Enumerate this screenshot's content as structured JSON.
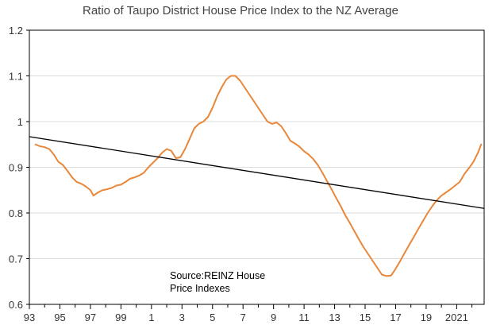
{
  "chart_data": {
    "type": "line",
    "title": "Ratio of Taupo District House Price Index to the NZ Average",
    "annotation": [
      "Source:REINZ House",
      "Price Indexes"
    ],
    "x_tick_labels": [
      "93",
      "95",
      "97",
      "99",
      "1",
      "3",
      "5",
      "7",
      "9",
      "11",
      "13",
      "15",
      "17",
      "19",
      "2021"
    ],
    "x_tick_years": [
      1993,
      1995,
      1997,
      1999,
      2001,
      2003,
      2005,
      2007,
      2009,
      2011,
      2013,
      2015,
      2017,
      2019,
      2021
    ],
    "xlim": [
      1993,
      2022.8
    ],
    "ylim": [
      0.6,
      1.2
    ],
    "y_ticks": [
      0.6,
      0.7,
      0.8,
      0.9,
      1.0,
      1.1,
      1.2
    ],
    "y_tick_labels": [
      "0.6",
      "0.7",
      "0.8",
      "0.9",
      "1",
      "1.1",
      "1.2"
    ],
    "grid": "horizontal",
    "series": [
      {
        "color": "#E8873A",
        "x": [
          1993.4,
          1993.7,
          1994.0,
          1994.3,
          1994.6,
          1994.9,
          1995.2,
          1995.5,
          1995.8,
          1996.1,
          1996.4,
          1996.7,
          1997.0,
          1997.2,
          1997.5,
          1997.8,
          1998.1,
          1998.4,
          1998.7,
          1999.0,
          1999.3,
          1999.6,
          1999.9,
          2000.2,
          2000.5,
          2000.8,
          2001.1,
          2001.4,
          2001.7,
          2002.0,
          2002.3,
          2002.6,
          2002.9,
          2003.2,
          2003.5,
          2003.8,
          2004.1,
          2004.4,
          2004.7,
          2005.0,
          2005.3,
          2005.6,
          2005.9,
          2006.2,
          2006.5,
          2006.8,
          2007.1,
          2007.4,
          2007.7,
          2008.0,
          2008.3,
          2008.6,
          2008.9,
          2009.2,
          2009.5,
          2009.8,
          2010.1,
          2010.4,
          2010.7,
          2011.0,
          2011.3,
          2011.6,
          2011.9,
          2012.2,
          2012.5,
          2012.8,
          2013.1,
          2013.4,
          2013.7,
          2014.0,
          2014.3,
          2014.6,
          2014.9,
          2015.2,
          2015.5,
          2015.8,
          2016.1,
          2016.4,
          2016.7,
          2017.0,
          2017.3,
          2017.6,
          2017.9,
          2018.2,
          2018.5,
          2018.8,
          2019.1,
          2019.4,
          2019.7,
          2020.0,
          2020.3,
          2020.6,
          2020.9,
          2021.2,
          2021.5,
          2021.8,
          2022.1,
          2022.4,
          2022.6
        ],
        "values": [
          0.95,
          0.946,
          0.944,
          0.94,
          0.928,
          0.912,
          0.905,
          0.892,
          0.878,
          0.868,
          0.864,
          0.858,
          0.85,
          0.838,
          0.845,
          0.85,
          0.852,
          0.855,
          0.86,
          0.862,
          0.868,
          0.875,
          0.878,
          0.882,
          0.888,
          0.9,
          0.91,
          0.92,
          0.932,
          0.94,
          0.936,
          0.92,
          0.922,
          0.94,
          0.962,
          0.985,
          0.995,
          1.0,
          1.01,
          1.03,
          1.055,
          1.075,
          1.092,
          1.1,
          1.1,
          1.09,
          1.075,
          1.06,
          1.045,
          1.03,
          1.015,
          1.0,
          0.995,
          0.998,
          0.99,
          0.975,
          0.958,
          0.952,
          0.945,
          0.935,
          0.928,
          0.918,
          0.905,
          0.888,
          0.87,
          0.852,
          0.833,
          0.815,
          0.795,
          0.778,
          0.76,
          0.742,
          0.725,
          0.71,
          0.695,
          0.68,
          0.665,
          0.662,
          0.663,
          0.678,
          0.695,
          0.713,
          0.731,
          0.748,
          0.766,
          0.783,
          0.8,
          0.815,
          0.828,
          0.838,
          0.845,
          0.852,
          0.86,
          0.868,
          0.885,
          0.898,
          0.912,
          0.932,
          0.95
        ]
      },
      {
        "color": "#000000",
        "x": [
          1993.0,
          2022.8
        ],
        "values": [
          0.967,
          0.81
        ]
      }
    ]
  }
}
